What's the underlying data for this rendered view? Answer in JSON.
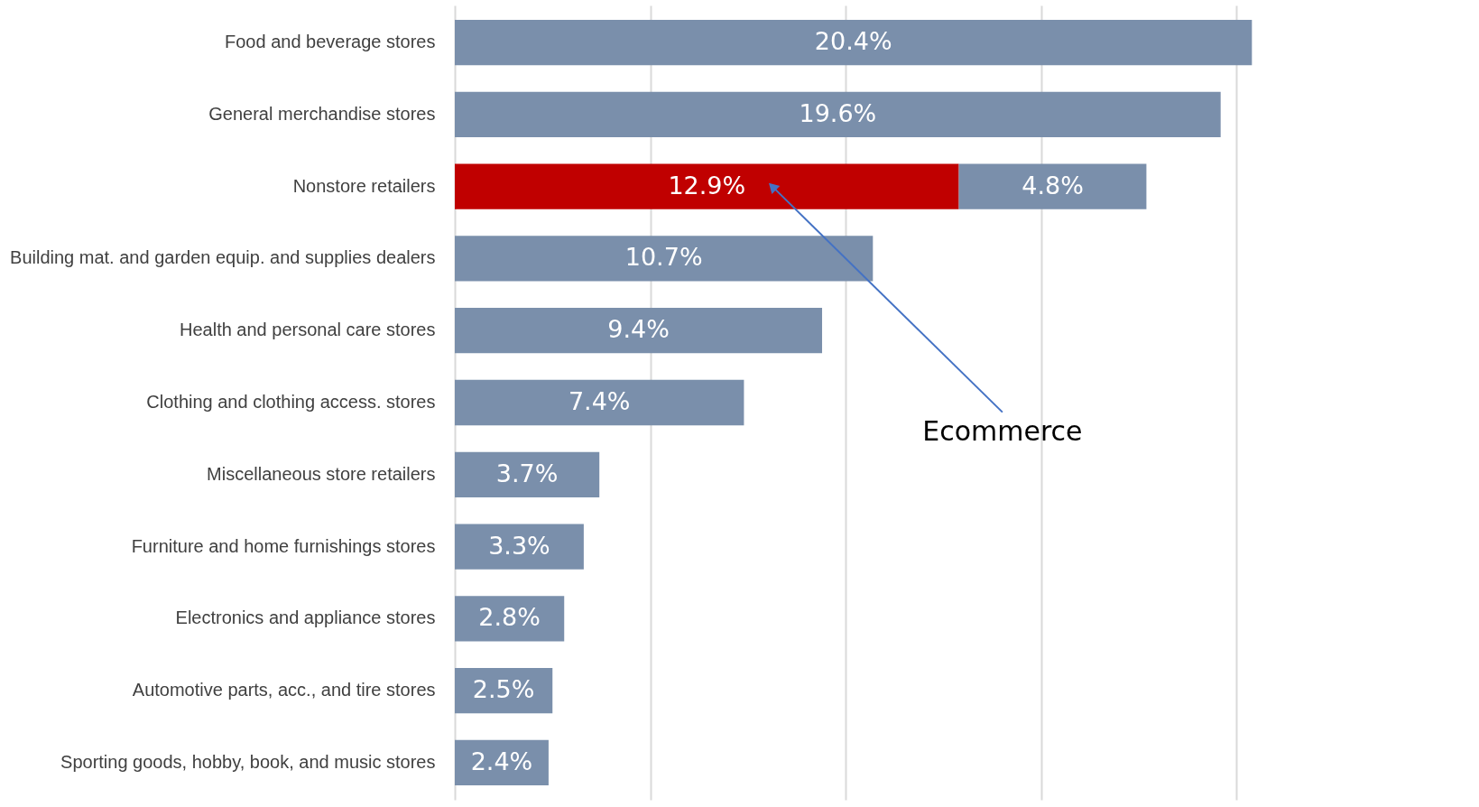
{
  "chart_data": {
    "type": "bar",
    "orientation": "horizontal",
    "stacked": true,
    "categories": [
      "Food and beverage stores",
      "General merchandise stores",
      "Nonstore retailers",
      "Building mat. and garden equip. and supplies dealers",
      "Health and personal care stores",
      "Clothing and clothing access. stores",
      "Miscellaneous store retailers",
      "Furniture and home furnishings stores",
      "Electronics and appliance stores",
      "Automotive parts, acc., and tire stores",
      "Sporting goods, hobby, book, and music stores"
    ],
    "series": [
      {
        "color": "#c00000",
        "values": [
          null,
          null,
          12.9,
          null,
          null,
          null,
          null,
          null,
          null,
          null,
          null
        ],
        "value_labels": [
          null,
          null,
          "12.9%",
          null,
          null,
          null,
          null,
          null,
          null,
          null,
          null
        ]
      },
      {
        "color": "#7a8fab",
        "values": [
          20.4,
          19.6,
          4.8,
          10.7,
          9.4,
          7.4,
          3.7,
          3.3,
          2.8,
          2.5,
          2.4
        ],
        "value_labels": [
          "20.4%",
          "19.6%",
          "4.8%",
          "10.7%",
          "9.4%",
          "7.4%",
          "3.7%",
          "3.3%",
          "2.8%",
          "2.5%",
          "2.4%"
        ]
      }
    ],
    "grid": "x",
    "tick_labels": "y",
    "annotations": [
      "Ecommerce"
    ]
  }
}
